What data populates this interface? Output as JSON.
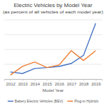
{
  "chart_data": {
    "type": "line",
    "title": "Electric Vehicles by Model Year",
    "subtitle": "(as percent of all vehicles of each model year)",
    "xlabel": "Model Year",
    "categories": [
      "2012",
      "2013",
      "2014",
      "2015",
      "2016",
      "2017",
      "2018",
      "2019"
    ],
    "series": [
      {
        "name": "Battery Electric Vehicles (BEV)",
        "color": "#4472c4",
        "line_style": "solid",
        "values": [
          0.24,
          0.19,
          0.36,
          0.39,
          0.43,
          0.53,
          0.8,
          1.88
        ]
      },
      {
        "name": "Plug-in Hybrids",
        "color": "#ed7d31",
        "line_style": "solid",
        "values": [
          0.14,
          0.43,
          0.58,
          0.39,
          0.48,
          0.96,
          0.63,
          0.96
        ]
      }
    ],
    "ylim": [
      0,
      2
    ],
    "yticks": [
      0,
      0.5,
      1,
      1.5,
      2
    ],
    "grid": true,
    "legend": "bottom",
    "tick_labels": "x"
  }
}
